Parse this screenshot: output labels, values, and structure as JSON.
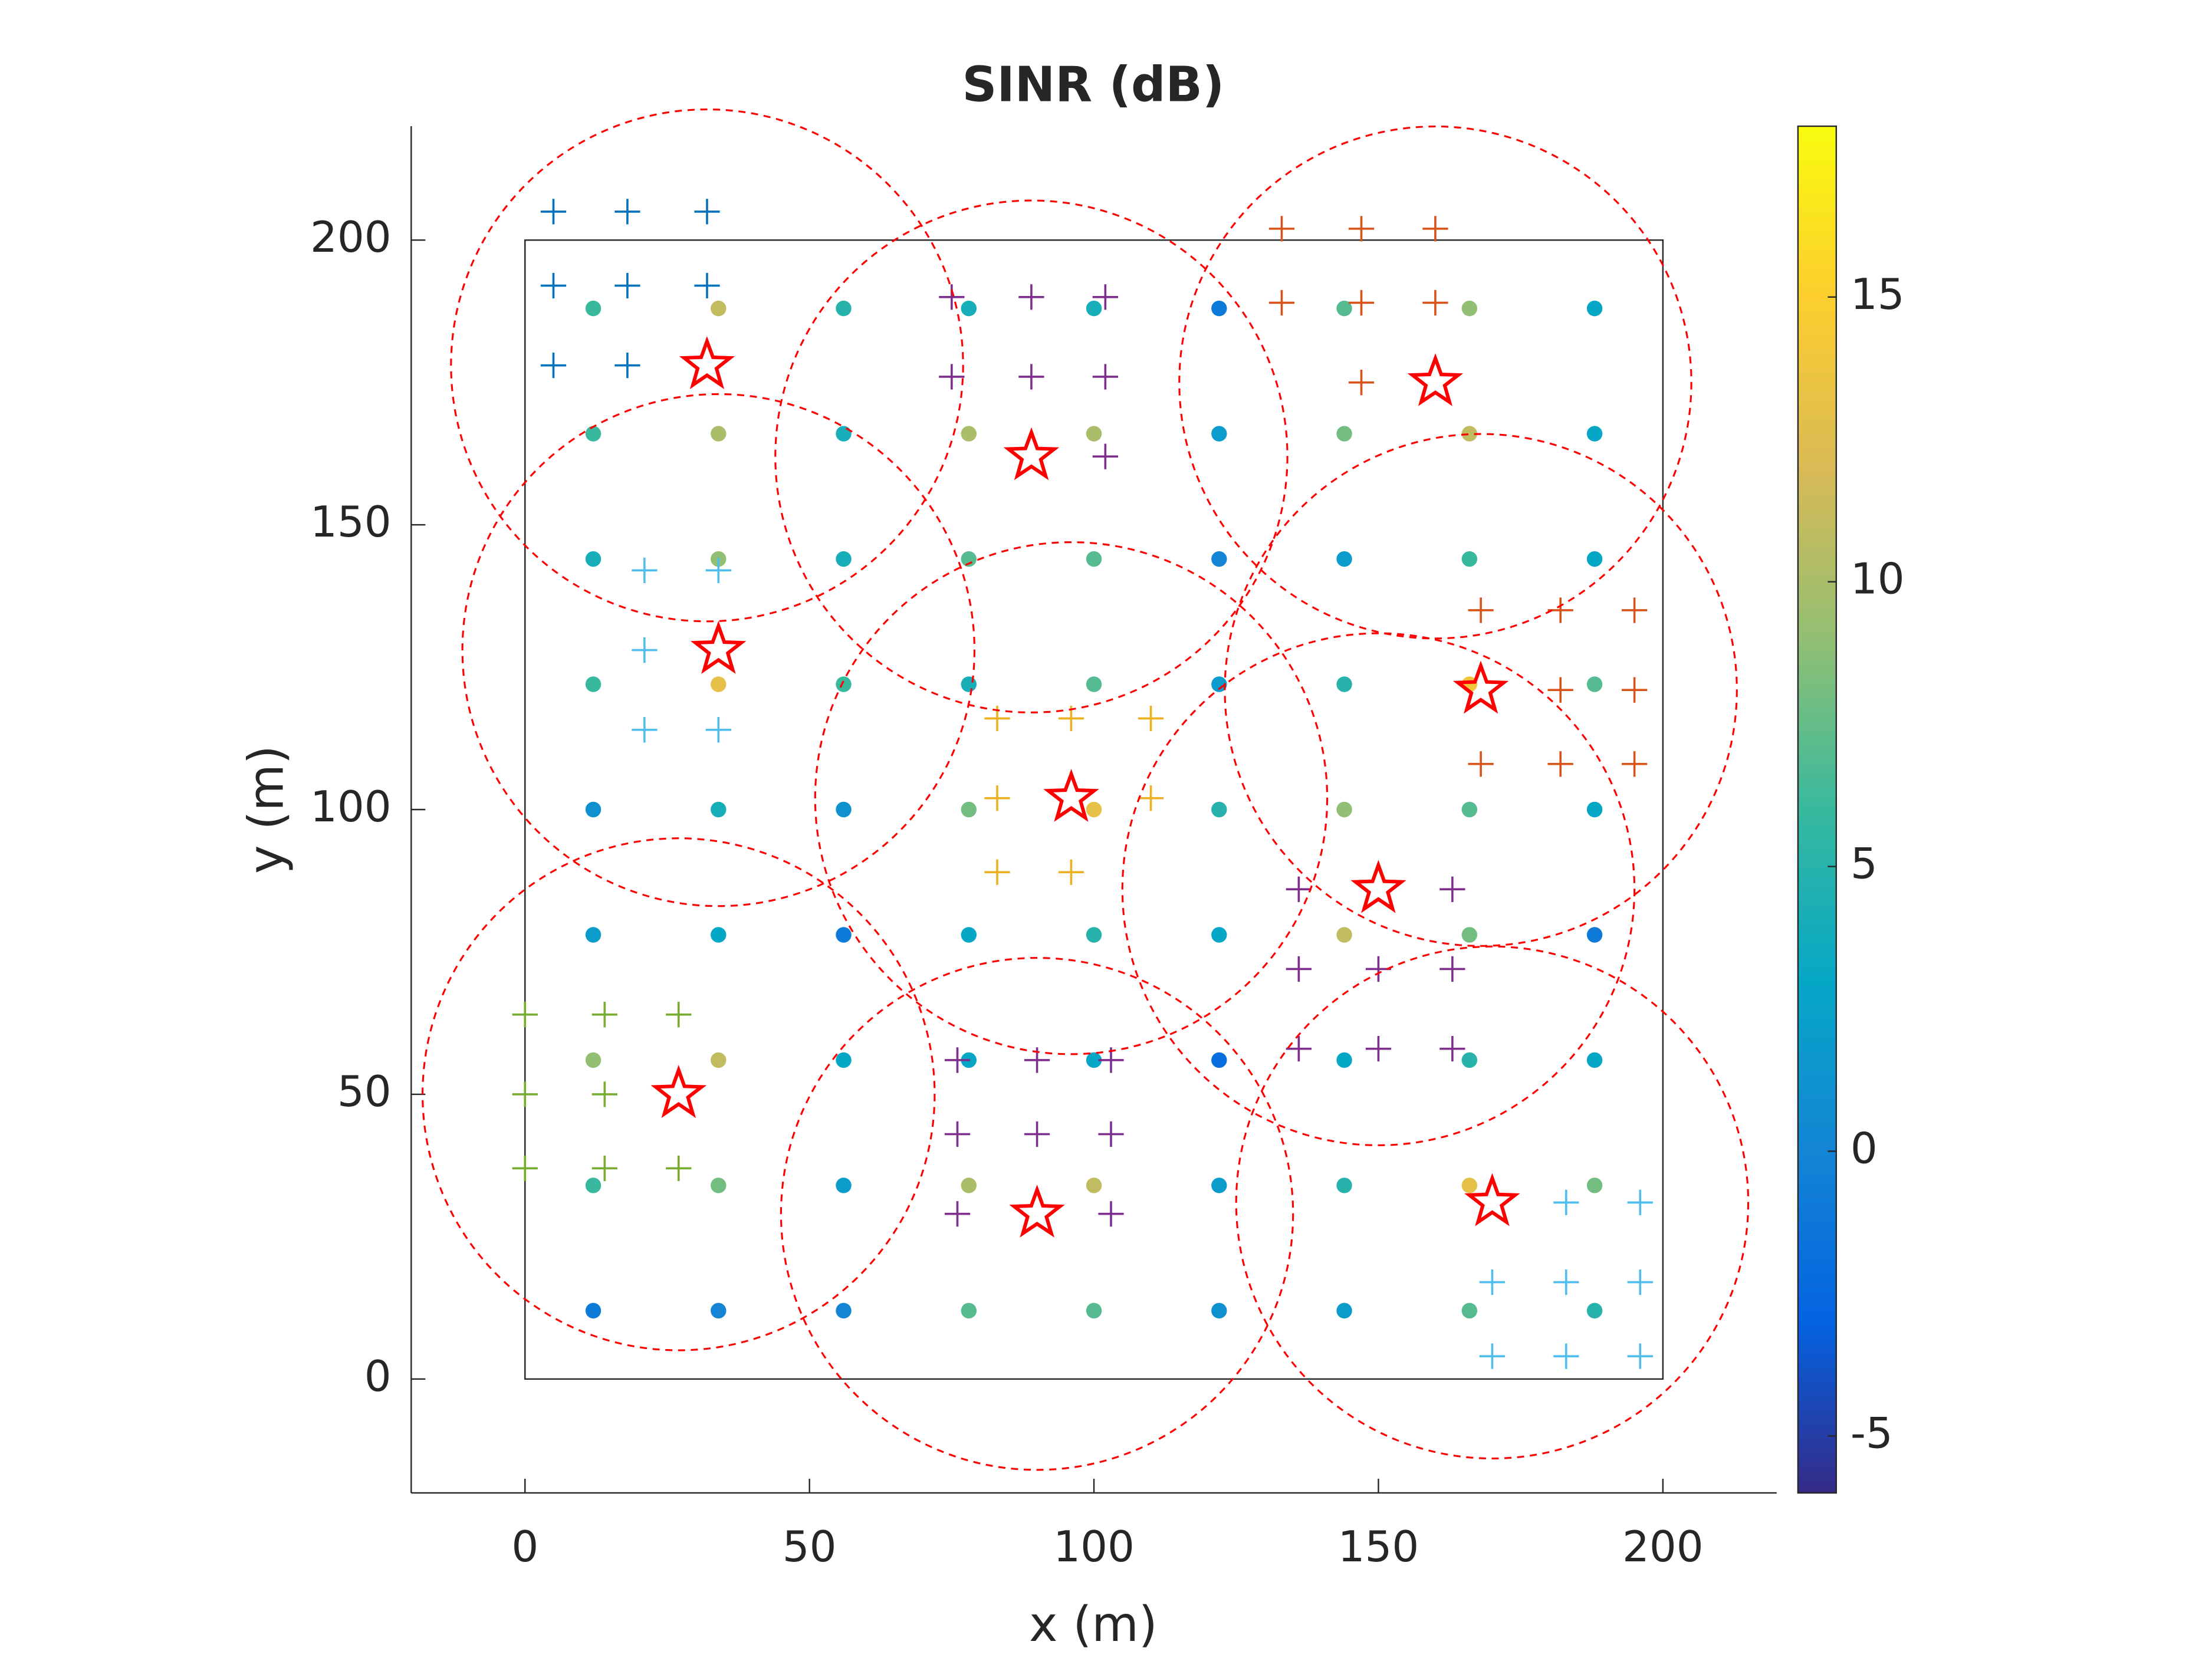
{
  "chart_data": {
    "type": "scatter",
    "title": "SINR (dB)",
    "x_label": "x (m)",
    "y_label": "y (m)",
    "xlim": [
      -20,
      220
    ],
    "ylim": [
      -20,
      220
    ],
    "xticks": [
      0,
      50,
      100,
      150,
      200
    ],
    "yticks": [
      0,
      50,
      100,
      150,
      200
    ],
    "area_size": 200,
    "clim": [
      -6,
      18
    ],
    "cticks": [
      -5,
      0,
      5,
      10,
      15
    ],
    "colormap": [
      "#352a87",
      "#0363e1",
      "#1485d4",
      "#06a7c6",
      "#38b99e",
      "#92bf73",
      "#d9ba56",
      "#fcce2e",
      "#f9fb0e"
    ],
    "x": [
      12,
      34,
      56,
      78,
      100,
      122,
      144,
      166,
      188,
      12,
      34,
      56,
      78,
      100,
      122,
      144,
      166,
      188,
      12,
      34,
      56,
      78,
      100,
      122,
      144,
      166,
      188,
      12,
      34,
      56,
      78,
      100,
      122,
      144,
      166,
      188,
      12,
      34,
      56,
      78,
      100,
      122,
      144,
      166,
      188,
      12,
      34,
      56,
      78,
      100,
      122,
      144,
      166,
      188,
      12,
      34,
      56,
      78,
      100,
      122,
      144,
      166,
      188,
      12,
      34,
      56,
      78,
      100,
      122,
      144,
      166,
      188,
      12,
      34,
      56,
      78,
      100,
      122,
      144,
      166,
      188
    ],
    "y": [
      188,
      188,
      188,
      188,
      188,
      188,
      188,
      188,
      188,
      166,
      166,
      166,
      166,
      166,
      166,
      166,
      166,
      166,
      144,
      144,
      144,
      144,
      144,
      144,
      144,
      144,
      144,
      122,
      122,
      122,
      122,
      122,
      122,
      122,
      122,
      122,
      100,
      100,
      100,
      100,
      100,
      100,
      100,
      100,
      100,
      78,
      78,
      78,
      78,
      78,
      78,
      78,
      78,
      78,
      56,
      56,
      56,
      56,
      56,
      56,
      56,
      56,
      56,
      34,
      34,
      34,
      34,
      34,
      34,
      34,
      34,
      34,
      12,
      12,
      12,
      12,
      12,
      12,
      12,
      12,
      12
    ],
    "values": [
      6,
      11,
      5,
      4,
      4,
      -1,
      7,
      9,
      3,
      6,
      10,
      4,
      10,
      10,
      2,
      8,
      11,
      3,
      4,
      9,
      4,
      7,
      7,
      0,
      2,
      6,
      3,
      6,
      13,
      6,
      4,
      7,
      2,
      5,
      14,
      7,
      1,
      4,
      1,
      8,
      13,
      5,
      9,
      7,
      3,
      2,
      3,
      -1,
      3,
      5,
      3,
      11,
      8,
      -1,
      9,
      11,
      3,
      3,
      3,
      -2,
      3,
      5,
      3,
      6,
      8,
      2,
      10,
      11,
      2,
      5,
      13,
      8,
      -1,
      0,
      0,
      7,
      7,
      1,
      2,
      7,
      5
    ],
    "stations": {
      "x": [
        32,
        89,
        160,
        34,
        168,
        96,
        150,
        27,
        90,
        170
      ],
      "y": [
        178,
        162,
        175,
        128,
        121,
        102,
        86,
        50,
        29,
        31
      ],
      "color": "#ff0000"
    },
    "coverage_radius": 45,
    "cross_groups": [
      {
        "color": "#0072bd",
        "x": [
          5,
          18,
          32,
          5,
          18,
          32,
          5,
          18
        ],
        "y": [
          205,
          205,
          205,
          192,
          192,
          192,
          178,
          178
        ]
      },
      {
        "color": "#7e2f8e",
        "x": [
          75,
          89,
          102,
          75,
          89,
          102,
          102
        ],
        "y": [
          190,
          190,
          190,
          176,
          176,
          176,
          162
        ]
      },
      {
        "color": "#d95319",
        "x": [
          133,
          147,
          160,
          133,
          147,
          160,
          147
        ],
        "y": [
          202,
          202,
          202,
          189,
          189,
          189,
          175
        ]
      },
      {
        "color": "#4dbeee",
        "x": [
          21,
          34,
          21,
          21,
          34
        ],
        "y": [
          142,
          142,
          128,
          114,
          114
        ]
      },
      {
        "color": "#d95319",
        "x": [
          168,
          182,
          195,
          182,
          195,
          168,
          182,
          195
        ],
        "y": [
          135,
          135,
          135,
          121,
          121,
          108,
          108,
          108
        ]
      },
      {
        "color": "#edb120",
        "x": [
          83,
          96,
          110,
          83,
          110,
          83,
          96
        ],
        "y": [
          116,
          116,
          116,
          102,
          102,
          89,
          89
        ]
      },
      {
        "color": "#7e2f8e",
        "x": [
          136,
          163,
          136,
          150,
          163,
          136,
          150,
          163
        ],
        "y": [
          86,
          86,
          72,
          72,
          72,
          58,
          58,
          58
        ]
      },
      {
        "color": "#77ac30",
        "x": [
          0,
          14,
          27,
          0,
          14,
          0,
          14,
          27
        ],
        "y": [
          64,
          64,
          64,
          50,
          50,
          37,
          37,
          37
        ]
      },
      {
        "color": "#7e2f8e",
        "x": [
          76,
          90,
          103,
          76,
          90,
          103,
          76,
          103
        ],
        "y": [
          56,
          56,
          56,
          43,
          43,
          43,
          29,
          29
        ]
      },
      {
        "color": "#4dbeee",
        "x": [
          183,
          196,
          170,
          183,
          196,
          170,
          183,
          196
        ],
        "y": [
          31,
          31,
          17,
          17,
          17,
          4,
          4,
          4
        ]
      }
    ]
  }
}
